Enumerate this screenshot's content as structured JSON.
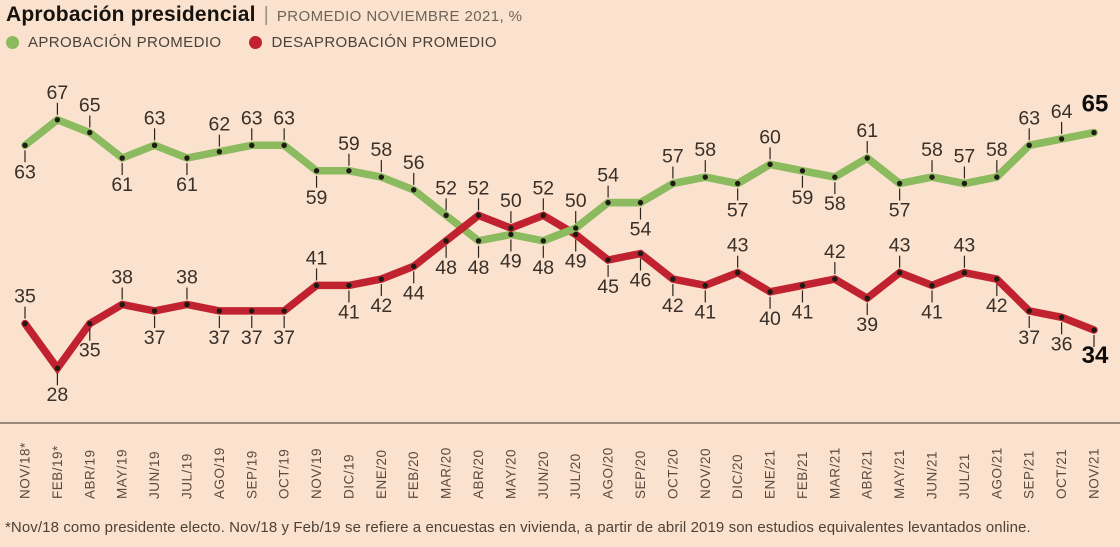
{
  "title": {
    "main": "Aprobación presidencial",
    "separator": "|",
    "subtitle": "PROMEDIO NOVIEMBRE 2021, %"
  },
  "legend": [
    {
      "label": "APROBACIÓN PROMEDIO",
      "color": "#8cba5f"
    },
    {
      "label": "DESAPROBACIÓN PROMEDIO",
      "color": "#c0232f"
    }
  ],
  "footnote": "*Nov/18 como presidente electo. Nov/18 y Feb/19 se refiere a encuestas en vivienda, a partir de abril 2019 son estudios equivalentes levantados online.",
  "colors": {
    "background": "#fbe2cf",
    "approval": "#8cba5f",
    "disapproval": "#c0232f",
    "value_label": "#3a3028",
    "axis_label": "#5b4b3f",
    "axis_line": "#3b2e25",
    "point_dot": "#201a14"
  },
  "chart_data": {
    "type": "line",
    "title": "Aprobación presidencial",
    "subtitle": "PROMEDIO NOVIEMBRE 2021, %",
    "xlabel": "",
    "ylabel": "%",
    "ylim": [
      25,
      70
    ],
    "grid": false,
    "legend_position": "top-left",
    "point_labels": true,
    "categories": [
      "NOV/18*",
      "FEB/19*",
      "ABR/19",
      "MAY/19",
      "JUN/19",
      "JUL/19",
      "AGO/19",
      "SEP/19",
      "OCT/19",
      "NOV/19",
      "DIC/19",
      "ENE/20",
      "FEB/20",
      "MAR/20",
      "ABR/20",
      "MAY/20",
      "JUN/20",
      "JUL/20",
      "AGO/20",
      "SEP/20",
      "OCT/20",
      "NOV/20",
      "DIC/20",
      "ENE/21",
      "FEB/21",
      "MAR/21",
      "ABR/21",
      "MAY/21",
      "JUN/21",
      "JUL/21",
      "AGO/21",
      "SEP/21",
      "OCT/21",
      "NOV/21"
    ],
    "series": [
      {
        "name": "APROBACIÓN PROMEDIO",
        "color": "#8cba5f",
        "values": [
          63,
          67,
          65,
          61,
          63,
          61,
          62,
          63,
          63,
          59,
          59,
          58,
          56,
          52,
          48,
          49,
          48,
          50,
          54,
          54,
          57,
          58,
          57,
          60,
          59,
          58,
          61,
          57,
          58,
          57,
          58,
          63,
          64,
          65
        ],
        "label_side": [
          "below",
          "above",
          "above",
          "below",
          "above",
          "below",
          "above",
          "above",
          "above",
          "below",
          "above",
          "above",
          "above",
          "above",
          "below",
          "below",
          "below",
          "above",
          "above",
          "below",
          "above",
          "above",
          "below",
          "above",
          "below",
          "below",
          "above",
          "below",
          "above",
          "above",
          "above",
          "above",
          "above",
          "above"
        ],
        "bold_last": true,
        "last_tick": false
      },
      {
        "name": "DESAPROBACIÓN PROMEDIO",
        "color": "#c0232f",
        "values": [
          35,
          28,
          35,
          38,
          37,
          38,
          37,
          37,
          37,
          41,
          41,
          42,
          44,
          48,
          52,
          50,
          52,
          49,
          45,
          46,
          42,
          41,
          43,
          40,
          41,
          42,
          39,
          43,
          41,
          43,
          42,
          37,
          36,
          34
        ],
        "label_side": [
          "above",
          "below",
          "below",
          "above",
          "below",
          "above",
          "below",
          "below",
          "below",
          "above",
          "below",
          "below",
          "below",
          "below",
          "above",
          "above",
          "above",
          "below",
          "below",
          "below",
          "below",
          "below",
          "above",
          "below",
          "below",
          "above",
          "below",
          "above",
          "below",
          "above",
          "below",
          "below",
          "below",
          "below"
        ],
        "bold_last": true,
        "last_tick": true
      }
    ]
  }
}
